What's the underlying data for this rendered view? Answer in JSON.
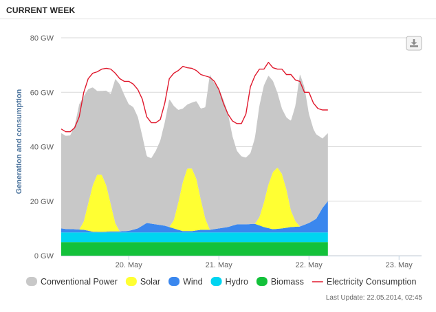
{
  "header": {
    "title": "CURRENT WEEK"
  },
  "footer": {
    "last_update_label": "Last Update:",
    "last_update_value": "22.05.2014, 02:45"
  },
  "export_button": {
    "icon": "download-icon"
  },
  "chart_data": {
    "type": "area",
    "title": "",
    "xlabel": "",
    "ylabel": "Generation and consumption",
    "unit": "GW",
    "ylim": [
      0,
      80
    ],
    "yticks": [
      0,
      20,
      40,
      60,
      80
    ],
    "ytick_labels": [
      "0 GW",
      "20 GW",
      "40 GW",
      "60 GW",
      "80 GW"
    ],
    "xlim": [
      19.25,
      23.25
    ],
    "xticks": [
      20,
      21,
      22,
      23
    ],
    "xtick_labels": [
      "20. May",
      "21. May",
      "22. May",
      "23. May"
    ],
    "grid": "horizontal",
    "legend_position": "bottom",
    "stacked": true,
    "series": [
      {
        "name": "Biomass",
        "color": "#13c13a",
        "x": [
          19.25,
          22.21
        ],
        "values": [
          5,
          5
        ]
      },
      {
        "name": "Hydro",
        "color": "#00d4f0",
        "x": [
          19.25,
          22.21
        ],
        "values": [
          3.5,
          3.5
        ]
      },
      {
        "name": "Wind",
        "color": "#3a87ee",
        "x": [
          19.25,
          19.3,
          19.4,
          19.5,
          19.6,
          19.7,
          19.8,
          19.9,
          20.0,
          20.1,
          20.2,
          20.3,
          20.4,
          20.5,
          20.6,
          20.7,
          20.8,
          20.9,
          21.0,
          21.1,
          21.2,
          21.3,
          21.4,
          21.5,
          21.6,
          21.7,
          21.8,
          21.9,
          22.0,
          22.08,
          22.15,
          22.21
        ],
        "values": [
          1.5,
          1.3,
          1.2,
          1.0,
          0.3,
          0.2,
          0.4,
          0.4,
          0.6,
          1.5,
          3.5,
          3.0,
          2.5,
          1.5,
          0.5,
          0.5,
          1.0,
          1.0,
          1.5,
          2.0,
          3.0,
          3.0,
          3.2,
          2.0,
          1.2,
          1.5,
          2.0,
          2.2,
          3.5,
          5.0,
          9.0,
          11.5
        ]
      },
      {
        "name": "Solar",
        "color": "#ffff33",
        "x": [
          19.25,
          19.45,
          19.5,
          19.55,
          19.6,
          19.65,
          19.7,
          19.75,
          19.8,
          19.85,
          19.9,
          20.0,
          20.45,
          20.5,
          20.55,
          20.6,
          20.65,
          20.7,
          20.75,
          20.8,
          20.85,
          20.9,
          21.0,
          21.4,
          21.45,
          21.5,
          21.55,
          21.6,
          21.65,
          21.7,
          21.75,
          21.8,
          21.85,
          21.9,
          22.21
        ],
        "values": [
          0,
          0,
          3,
          10,
          17,
          21,
          21,
          17,
          10,
          3,
          0,
          0,
          0,
          3,
          10,
          18,
          23,
          23,
          19,
          11,
          4,
          0,
          0,
          0,
          3,
          9,
          16,
          21,
          22.5,
          20,
          14,
          6,
          2,
          0,
          0
        ]
      },
      {
        "name": "Conventional Power",
        "color": "#c8c8c8",
        "x": [
          19.25,
          19.3,
          19.35,
          19.4,
          19.45,
          19.5,
          19.55,
          19.6,
          19.65,
          19.7,
          19.75,
          19.8,
          19.85,
          19.9,
          19.95,
          20.0,
          20.05,
          20.1,
          20.15,
          20.2,
          20.25,
          20.3,
          20.35,
          20.4,
          20.45,
          20.5,
          20.55,
          20.6,
          20.65,
          20.7,
          20.75,
          20.8,
          20.85,
          20.9,
          20.95,
          21.0,
          21.05,
          21.1,
          21.15,
          21.2,
          21.25,
          21.3,
          21.35,
          21.4,
          21.45,
          21.5,
          21.55,
          21.6,
          21.65,
          21.7,
          21.75,
          21.8,
          21.85,
          21.9,
          21.95,
          22.0,
          22.05,
          22.1,
          22.15,
          22.21
        ],
        "values": [
          35.0,
          34.2,
          34.4,
          38.0,
          46.0,
          46.0,
          42.0,
          36.0,
          30.7,
          30.8,
          34.8,
          40.4,
          53.0,
          54.0,
          50.0,
          46.5,
          45.0,
          41.0,
          33.0,
          24.5,
          24.0,
          27.0,
          31.0,
          38.0,
          47.0,
          42.0,
          34.0,
          27.0,
          23.5,
          24.2,
          28.5,
          33.5,
          41.0,
          57.0,
          53.5,
          51.5,
          47.0,
          42.0,
          33.0,
          27.0,
          25.0,
          24.5,
          26.0,
          31.5,
          41.0,
          43.0,
          40.0,
          33.5,
          27.5,
          24.0,
          26.5,
          33.0,
          42.5,
          56.0,
          50.5,
          40.0,
          33.5,
          29.5,
          25.5,
          25.0
        ]
      },
      {
        "name": "Electricity Consumption",
        "color": "#e0192d",
        "kind": "line",
        "x": [
          19.25,
          19.3,
          19.35,
          19.4,
          19.45,
          19.5,
          19.55,
          19.6,
          19.65,
          19.7,
          19.75,
          19.8,
          19.85,
          19.9,
          19.95,
          20.0,
          20.05,
          20.1,
          20.15,
          20.2,
          20.25,
          20.3,
          20.35,
          20.4,
          20.45,
          20.5,
          20.55,
          20.6,
          20.65,
          20.7,
          20.75,
          20.8,
          20.85,
          20.9,
          20.95,
          21.0,
          21.05,
          21.1,
          21.15,
          21.2,
          21.25,
          21.3,
          21.35,
          21.4,
          21.45,
          21.5,
          21.55,
          21.6,
          21.65,
          21.7,
          21.75,
          21.8,
          21.85,
          21.9,
          21.95,
          22.0,
          22.05,
          22.1,
          22.15,
          22.21
        ],
        "values": [
          46.5,
          45.5,
          45.5,
          47.0,
          51.0,
          60.0,
          65.0,
          67.0,
          67.5,
          68.5,
          68.8,
          68.5,
          67.0,
          65.0,
          64.0,
          64.0,
          63.0,
          61.0,
          57.5,
          51.0,
          48.8,
          48.8,
          50.0,
          56.0,
          65.0,
          67.0,
          68.0,
          69.5,
          69.0,
          68.8,
          68.0,
          66.5,
          66.0,
          65.5,
          64.0,
          61.0,
          56.0,
          52.0,
          49.5,
          48.5,
          48.5,
          52.0,
          62.0,
          66.0,
          68.5,
          68.5,
          71.0,
          69.0,
          68.5,
          68.5,
          66.5,
          66.5,
          64.5,
          64.0,
          60.0,
          60.0,
          56.0,
          54.0,
          53.5,
          53.5
        ]
      }
    ]
  }
}
